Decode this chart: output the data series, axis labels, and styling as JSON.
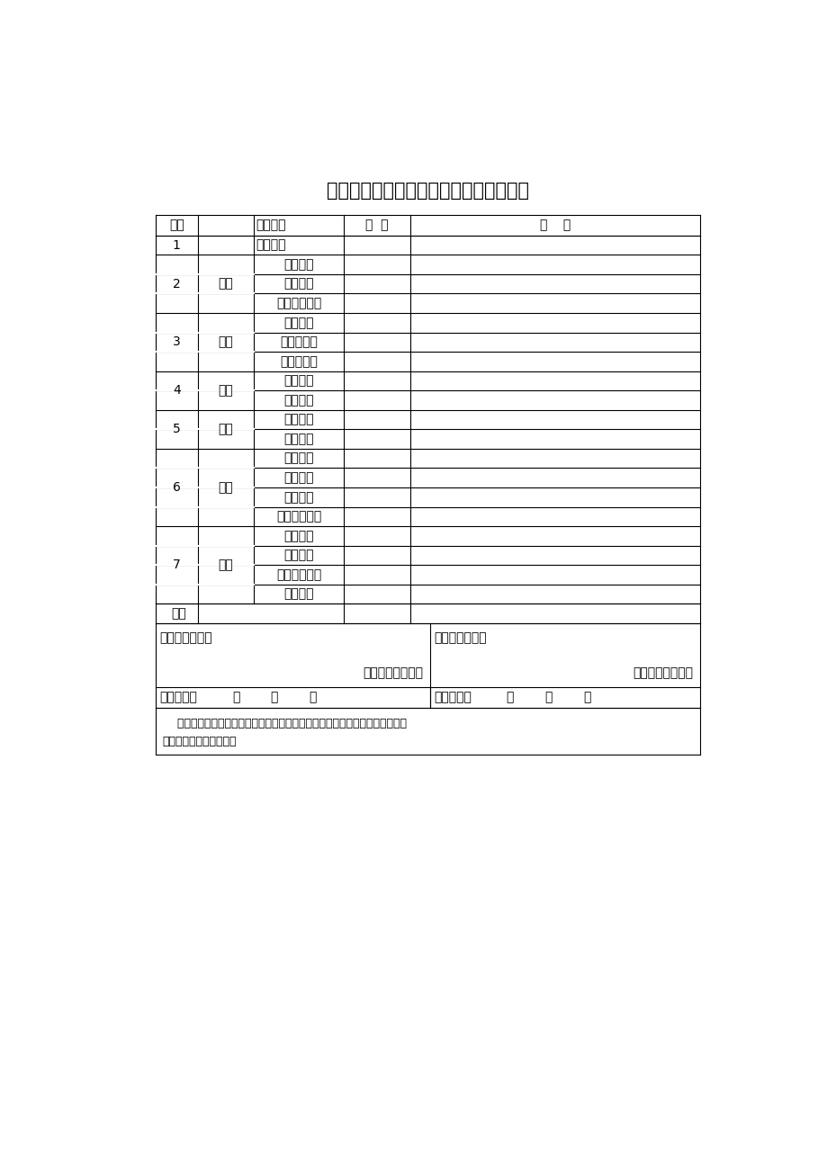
{
  "title": "施工现场地下管线资料的交接材料证明表",
  "title_fontsize": 15,
  "rows": [
    {
      "seq": "1",
      "cat": "",
      "sub": "给水管线",
      "span": 1
    },
    {
      "seq": "2",
      "cat": "排水",
      "sub": "污水管线",
      "span": 3
    },
    {
      "seq": "",
      "cat": "",
      "sub": "雨水管线",
      "span": 0
    },
    {
      "seq": "",
      "cat": "",
      "sub": "雨污合流管线",
      "span": 0
    },
    {
      "seq": "3",
      "cat": "燃气",
      "sub": "煤气管线",
      "span": 3
    },
    {
      "seq": "",
      "cat": "",
      "sub": "液化气管线",
      "span": 0
    },
    {
      "seq": "",
      "cat": "",
      "sub": "天然气管线",
      "span": 0
    },
    {
      "seq": "4",
      "cat": "工业",
      "sub": "乙炔管线",
      "span": 2
    },
    {
      "seq": "",
      "cat": "",
      "sub": "石油管线",
      "span": 0
    },
    {
      "seq": "5",
      "cat": "热力",
      "sub": "蒸汽管线",
      "span": 2
    },
    {
      "seq": "",
      "cat": "",
      "sub": "热水管线",
      "span": 0
    },
    {
      "seq": "6",
      "cat": "电力",
      "sub": "供电管线",
      "span": 4
    },
    {
      "seq": "",
      "cat": "",
      "sub": "路灯管线",
      "span": 0
    },
    {
      "seq": "",
      "cat": "",
      "sub": "电车管线",
      "span": 0
    },
    {
      "seq": "",
      "cat": "",
      "sub": "交通信号管线",
      "span": 0
    },
    {
      "seq": "7",
      "cat": "电信",
      "sub": "电话管线",
      "span": 4
    },
    {
      "seq": "",
      "cat": "",
      "sub": "广播管线",
      "span": 0
    },
    {
      "seq": "",
      "cat": "",
      "sub": "有线电视管线",
      "span": 0
    },
    {
      "seq": "",
      "cat": "",
      "sub": "光纤管线",
      "span": 0
    }
  ],
  "other_row": "其他",
  "header_seq": "序号",
  "header_mat": "材料名称",
  "header_num": "份  数",
  "header_note": "备    注",
  "bottom_left_label": "查明资料情况：",
  "bottom_right_label": "资料交接情况：",
  "seal_left": "建设单位（公章）",
  "seal_right": "施工单位（公章）",
  "rep_left": "现场代表：",
  "rep_right": "项目经理：",
  "date_labels": [
    "年",
    "月",
    "日"
  ],
  "footer_line1": "    本表一式四份，建设单位、监理单位、施工单位、安监站各持一份，并加盖建",
  "footer_line2": "设单位、施工单位公章。",
  "font_size": 10,
  "small_font_size": 9,
  "bg_color": "#ffffff",
  "line_color": "#000000"
}
